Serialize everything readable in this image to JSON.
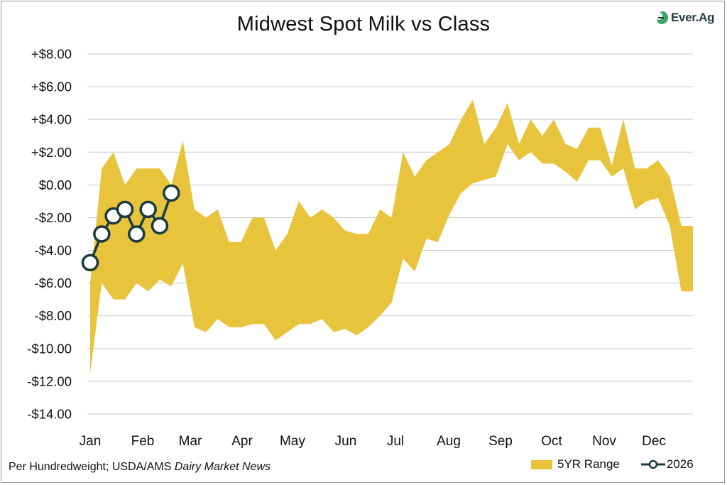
{
  "colors": {
    "band": "#e8c33c",
    "line": "#1b3a40",
    "marker_fill": "#ffffff",
    "grid": "#c8c8c8",
    "logo_green": "#3aa66b"
  },
  "logo": {
    "text": "Ever.Ag",
    "icon": "ever-ag-logo-icon"
  },
  "footnote": {
    "prefix": "Per Hundredweight; USDA/AMS ",
    "source": "Dairy Market News"
  },
  "chart_data": {
    "type": "area",
    "title": "Midwest Spot Milk vs Class",
    "xlabel": "",
    "ylabel": "",
    "ylim": [
      -14,
      8
    ],
    "yticks": [
      8,
      6,
      4,
      2,
      0,
      -2,
      -4,
      -6,
      -8,
      -10,
      -12,
      -14
    ],
    "ytick_labels": [
      "+$8.00",
      "+$6.00",
      "+$4.00",
      "+$2.00",
      "$0.00",
      "-$2.00",
      "-$4.00",
      "-$6.00",
      "-$8.00",
      "-$10.00",
      "-$12.00",
      "-$14.00"
    ],
    "xlim": [
      0,
      52
    ],
    "categories": [
      "Jan",
      "Feb",
      "Mar",
      "Apr",
      "May",
      "Jun",
      "Jul",
      "Aug",
      "Sep",
      "Oct",
      "Nov",
      "Dec"
    ],
    "grid": true,
    "legend_position": "bottom-right",
    "series": [
      {
        "name": "5YR Range",
        "kind": "band",
        "x": [
          0,
          1,
          2,
          3,
          4,
          5,
          6,
          7,
          8,
          9,
          10,
          11,
          12,
          13,
          14,
          15,
          16,
          17,
          18,
          19,
          20,
          21,
          22,
          23,
          24,
          25,
          26,
          27,
          28,
          29,
          30,
          31,
          32,
          33,
          34,
          35,
          36,
          37,
          38,
          39,
          40,
          41,
          42,
          43,
          44,
          45,
          46,
          47,
          48,
          49,
          50,
          51,
          52
        ],
        "high": [
          -6.0,
          1.0,
          2.0,
          0.0,
          1.0,
          1.0,
          1.0,
          0.0,
          2.7,
          -1.5,
          -2.0,
          -1.5,
          -3.5,
          -3.5,
          -2.0,
          -2.0,
          -4.0,
          -3.0,
          -1.0,
          -2.0,
          -1.5,
          -2.0,
          -2.8,
          -3.0,
          -3.0,
          -1.5,
          -2.0,
          2.0,
          0.5,
          1.5,
          2.0,
          2.5,
          4.0,
          5.2,
          2.5,
          3.5,
          5.0,
          2.5,
          4.0,
          3.0,
          4.0,
          2.5,
          2.2,
          3.5,
          3.5,
          1.2,
          4.0,
          1.0,
          1.0,
          1.5,
          0.5,
          -2.5,
          -2.5
        ],
        "low": [
          -11.5,
          -6.0,
          -7.0,
          -7.0,
          -6.0,
          -6.5,
          -5.8,
          -6.2,
          -4.8,
          -8.7,
          -9.0,
          -8.2,
          -8.7,
          -8.7,
          -8.5,
          -8.5,
          -9.5,
          -9.0,
          -8.5,
          -8.5,
          -8.2,
          -9.0,
          -8.8,
          -9.2,
          -8.7,
          -8.0,
          -7.2,
          -4.5,
          -5.3,
          -3.3,
          -3.5,
          -1.8,
          -0.5,
          0.1,
          0.3,
          0.5,
          2.5,
          1.5,
          2.0,
          1.3,
          1.3,
          0.8,
          0.2,
          1.5,
          1.5,
          0.5,
          1.0,
          -1.5,
          -1.0,
          -0.8,
          -2.5,
          -6.5,
          -6.5
        ]
      },
      {
        "name": "2026",
        "kind": "line",
        "x": [
          0,
          1,
          2,
          3,
          4,
          5,
          6,
          7
        ],
        "values": [
          -4.75,
          -3.0,
          -1.9,
          -1.5,
          -3.0,
          -1.5,
          -2.5,
          -0.5
        ]
      }
    ]
  }
}
